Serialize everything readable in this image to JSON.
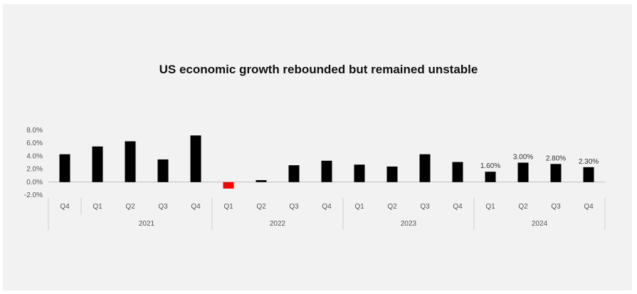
{
  "chart_data": {
    "type": "bar",
    "title": "US economic growth rebounded but remained unstable",
    "xlabel": "",
    "ylabel": "",
    "ylim": [
      -2,
      8
    ],
    "yticks": [
      "8.0%",
      "6.0%",
      "4.0%",
      "2.0%",
      "0.0%",
      "-2.0%"
    ],
    "ytick_values": [
      8,
      6,
      4,
      2,
      0,
      -2
    ],
    "categories": [
      "Q4",
      "Q1",
      "Q2",
      "Q3",
      "Q4",
      "Q1",
      "Q2",
      "Q3",
      "Q4",
      "Q1",
      "Q2",
      "Q3",
      "Q4",
      "Q1",
      "Q2",
      "Q3",
      "Q4"
    ],
    "groups": [
      {
        "label": "",
        "count": 1
      },
      {
        "label": "2021",
        "count": 4
      },
      {
        "label": "2022",
        "count": 4
      },
      {
        "label": "2023",
        "count": 4
      },
      {
        "label": "2024",
        "count": 4
      }
    ],
    "values": [
      4.3,
      5.5,
      6.3,
      3.5,
      7.2,
      -1.0,
      0.3,
      2.6,
      3.3,
      2.7,
      2.4,
      4.3,
      3.1,
      1.6,
      3.0,
      2.8,
      2.3
    ],
    "data_labels": [
      "",
      "",
      "",
      "",
      "",
      "",
      "",
      "",
      "",
      "",
      "",
      "",
      "",
      "1.60%",
      "3.00%",
      "2.80%",
      "2.30%"
    ],
    "bar_color": "#000000",
    "negative_color": "#ff0000",
    "grid": false,
    "legend": "none"
  }
}
